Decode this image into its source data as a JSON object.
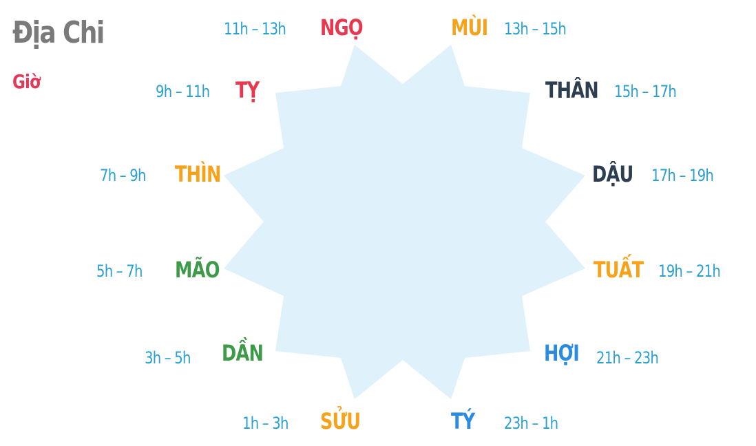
{
  "header": {
    "title": "Địa Chi",
    "subtitle": "Giờ",
    "subtitle_color": "#e2395a",
    "title_color": "#7a7a7a"
  },
  "colors": {
    "star_fill": "#dff1fa",
    "time_text": "#2aa0cf"
  },
  "branches": [
    {
      "name": "NGỌ",
      "time": "11h – 13h",
      "color": "#e8384f"
    },
    {
      "name": "MÙI",
      "time": "13h – 15h",
      "color": "#f7a21b"
    },
    {
      "name": "THÂN",
      "time": "15h – 17h",
      "color": "#2c3e50"
    },
    {
      "name": "DẬU",
      "time": "17h – 19h",
      "color": "#2c3e50"
    },
    {
      "name": "TUẤT",
      "time": "19h – 21h",
      "color": "#f7a21b"
    },
    {
      "name": "HỢI",
      "time": "21h – 23h",
      "color": "#2b8be0"
    },
    {
      "name": "TÝ",
      "time": "23h – 1h",
      "color": "#2b8be0"
    },
    {
      "name": "SỬU",
      "time": "1h – 3h",
      "color": "#f7a21b"
    },
    {
      "name": "DẦN",
      "time": "3h – 5h",
      "color": "#3e9a48"
    },
    {
      "name": "MÃO",
      "time": "5h – 7h",
      "color": "#3e9a48"
    },
    {
      "name": "THÌN",
      "time": "7h – 9h",
      "color": "#f7a21b"
    },
    {
      "name": "TỴ",
      "time": "9h – 11h",
      "color": "#e8384f"
    }
  ]
}
